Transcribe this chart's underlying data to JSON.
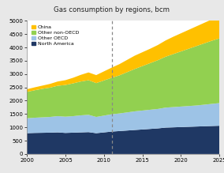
{
  "title": "Gas consumption by regions, bcm",
  "title_bg_color": "#a8a8a8",
  "years": [
    2000,
    2001,
    2002,
    2003,
    2004,
    2005,
    2006,
    2007,
    2008,
    2009,
    2010,
    2011,
    2012,
    2013,
    2014,
    2015,
    2016,
    2017,
    2018,
    2019,
    2020,
    2021,
    2022,
    2023,
    2024,
    2025
  ],
  "north_america": [
    780,
    790,
    795,
    800,
    810,
    790,
    800,
    810,
    820,
    780,
    810,
    840,
    860,
    880,
    900,
    920,
    940,
    960,
    990,
    1000,
    1010,
    1020,
    1030,
    1040,
    1050,
    1060
  ],
  "other_oecd": [
    560,
    570,
    580,
    590,
    610,
    610,
    620,
    640,
    650,
    610,
    630,
    650,
    660,
    680,
    700,
    710,
    720,
    730,
    750,
    760,
    770,
    780,
    790,
    810,
    830,
    850
  ],
  "other_nonoecd": [
    990,
    1030,
    1070,
    1100,
    1140,
    1190,
    1230,
    1270,
    1300,
    1270,
    1320,
    1370,
    1430,
    1510,
    1590,
    1670,
    1750,
    1830,
    1910,
    1990,
    2070,
    2150,
    2230,
    2300,
    2370,
    2430
  ],
  "china": [
    100,
    110,
    120,
    140,
    160,
    180,
    210,
    250,
    290,
    300,
    340,
    380,
    420,
    460,
    500,
    520,
    540,
    570,
    610,
    650,
    680,
    710,
    740,
    770,
    800,
    830
  ],
  "colors": {
    "north_america": "#1f3864",
    "other_oecd": "#9dc3e6",
    "other_nonoecd": "#92d050",
    "china": "#ffc000"
  },
  "ylim": [
    0,
    5000
  ],
  "yticks": [
    0,
    500,
    1000,
    1500,
    2000,
    2500,
    3000,
    3500,
    4000,
    4500,
    5000
  ],
  "xlim": [
    2000,
    2025
  ],
  "xticks": [
    2000,
    2005,
    2010,
    2015,
    2020,
    2025
  ],
  "dashed_line_x": 2011,
  "outer_bg": "#e8e8e8",
  "plot_bg_color": "#ffffff"
}
